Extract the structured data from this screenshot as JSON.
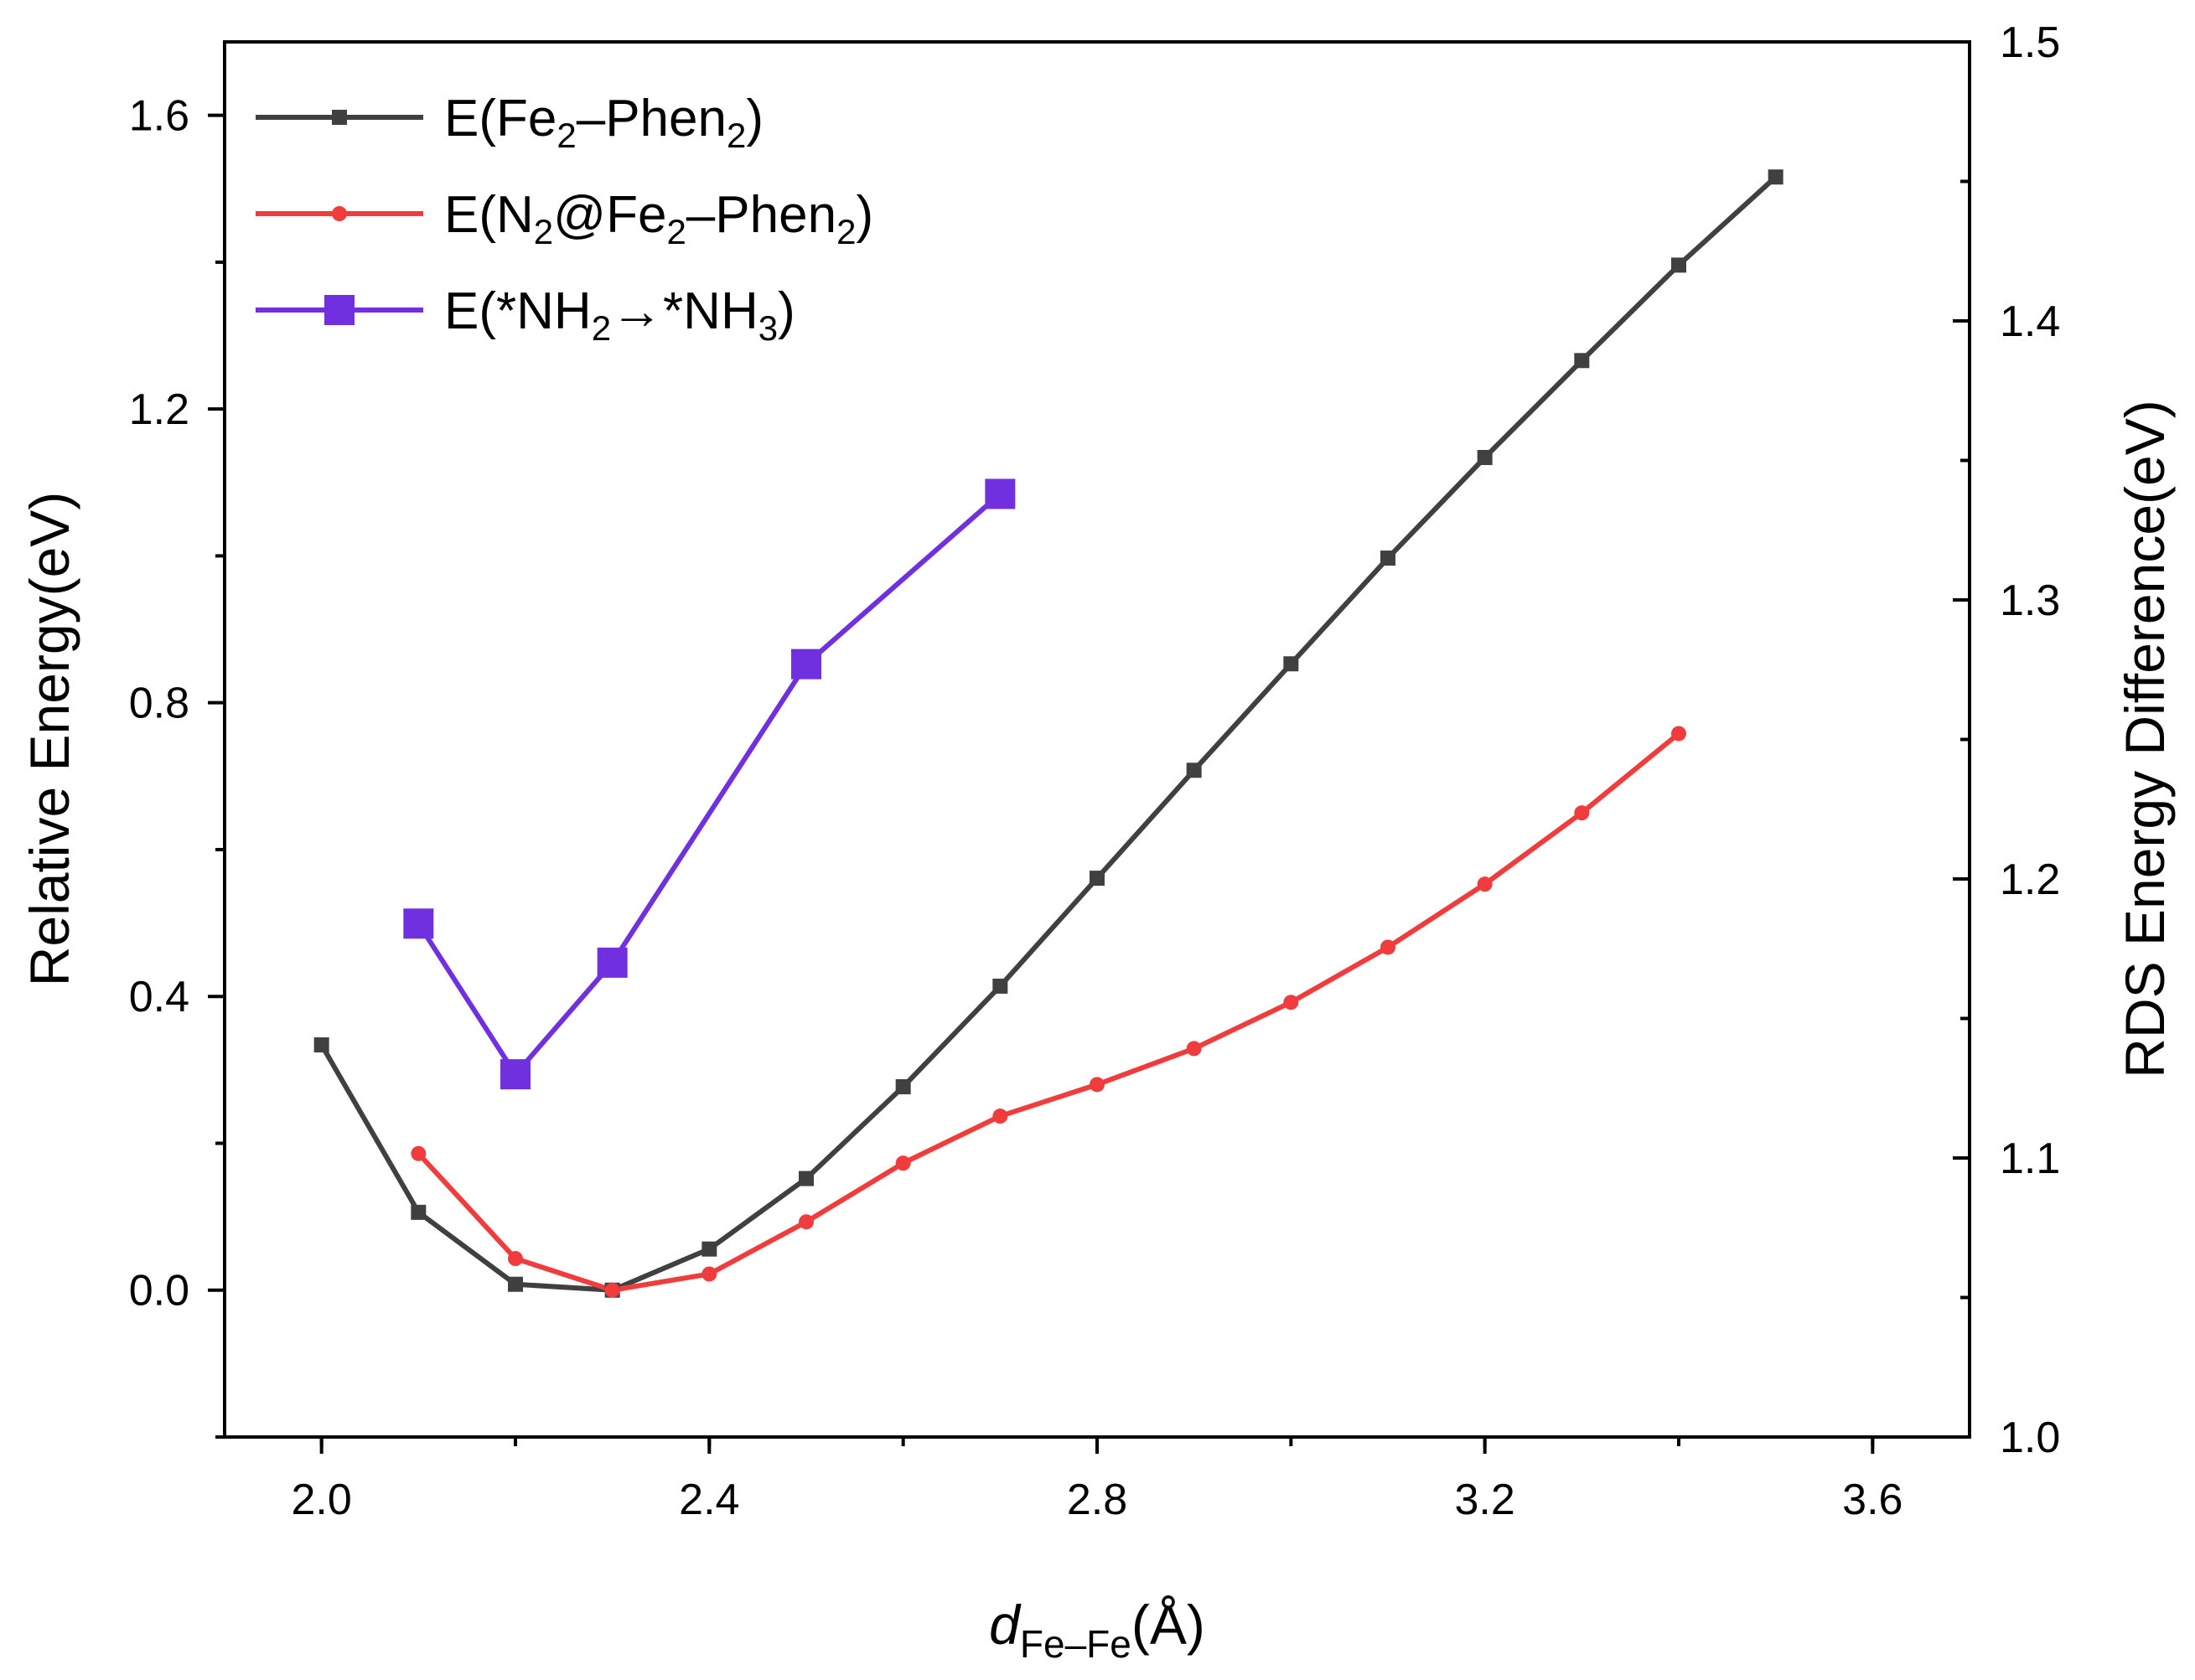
{
  "chart_data": {
    "type": "line",
    "xlabel": {
      "var": "d",
      "sub": "Fe–Fe",
      "unit": "(Å)"
    },
    "ylabel_left": "Relative Energy(eV)",
    "ylabel_right": "RDS Energy Difference(eV)",
    "xlim": [
      1.9,
      3.7
    ],
    "ylim_left": [
      -0.2,
      1.7
    ],
    "ylim_right": [
      1.0,
      1.5
    ],
    "x_ticks": [
      "2.0",
      "2.4",
      "2.8",
      "3.2",
      "3.6"
    ],
    "y_left_ticks": [
      "0.0",
      "0.4",
      "0.8",
      "1.2",
      "1.6"
    ],
    "y_right_ticks": [
      "1.0",
      "1.1",
      "1.2",
      "1.3",
      "1.4",
      "1.5"
    ],
    "grid": false,
    "legend_position": "top-left",
    "series": [
      {
        "name": [
          "E(Fe",
          "2",
          "–Phen",
          "2",
          ")"
        ],
        "axis": "left",
        "color": "#404040",
        "marker": "square-small",
        "x": [
          2.0,
          2.1,
          2.2,
          2.3,
          2.4,
          2.5,
          2.6,
          2.7,
          2.8,
          2.9,
          3.0,
          3.1,
          3.2,
          3.3,
          3.4,
          3.5
        ],
        "y": [
          0.334,
          0.106,
          0.008,
          0.0,
          0.056,
          0.152,
          0.277,
          0.414,
          0.561,
          0.708,
          0.853,
          0.997,
          1.134,
          1.266,
          1.396,
          1.516
        ]
      },
      {
        "name": [
          "E(N",
          "2",
          "@Fe",
          "2",
          "–Phen",
          "2",
          ")"
        ],
        "axis": "left",
        "color": "#f03c3c",
        "marker": "circle",
        "x": [
          2.1,
          2.2,
          2.3,
          2.4,
          2.5,
          2.6,
          2.7,
          2.8,
          2.9,
          3.0,
          3.1,
          3.2,
          3.3,
          3.4
        ],
        "y": [
          0.186,
          0.043,
          0.0,
          0.022,
          0.093,
          0.173,
          0.237,
          0.28,
          0.329,
          0.392,
          0.467,
          0.553,
          0.65,
          0.758
        ]
      },
      {
        "name": [
          "E(*NH",
          "2",
          "→*NH",
          "3",
          ")"
        ],
        "axis": "right",
        "color": "#7030e0",
        "marker": "square-large",
        "x": [
          2.1,
          2.2,
          2.3,
          2.5,
          2.7
        ],
        "y": [
          1.184,
          1.13,
          1.17,
          1.277,
          1.338
        ]
      }
    ]
  }
}
